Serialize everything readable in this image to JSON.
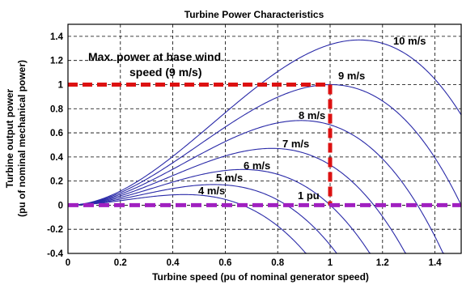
{
  "chart_data": {
    "type": "line",
    "title": "Turbine Power Characteristics",
    "xlabel": "Turbine speed (pu of nominal generator speed)",
    "ylabel_line1": "Turbine output power",
    "ylabel_line2": "(pu of nominal mechanical power)",
    "xlim": [
      0,
      1.5
    ],
    "ylim": [
      -0.4,
      1.5
    ],
    "xticks": [
      "0",
      "0.2",
      "0.4",
      "0.6",
      "0.8",
      "1",
      "1.2",
      "1.4"
    ],
    "yticks": [
      "-0.4",
      "-0.2",
      "0",
      "0.2",
      "0.4",
      "0.6",
      "0.8",
      "1",
      "1.2",
      "1.4"
    ],
    "grid": true,
    "line_color": "#2a2aa8",
    "series": [
      {
        "name": "10 m/s",
        "peak_x": 1.111,
        "peak_y": 1.37
      },
      {
        "name": "9 m/s",
        "peak_x": 1.0,
        "peak_y": 1.0
      },
      {
        "name": "8 m/s",
        "peak_x": 0.889,
        "peak_y": 0.702
      },
      {
        "name": "7 m/s",
        "peak_x": 0.778,
        "peak_y": 0.471
      },
      {
        "name": "6 m/s",
        "peak_x": 0.667,
        "peak_y": 0.296
      },
      {
        "name": "5 m/s",
        "peak_x": 0.556,
        "peak_y": 0.171
      },
      {
        "name": "4 m/s",
        "peak_x": 0.444,
        "peak_y": 0.088
      }
    ],
    "annotations": {
      "max_power_line1": "Max. power at base wind",
      "max_power_line2": "speed (9 m/s)",
      "one_pu": "1 pu"
    },
    "markers": {
      "red_color": "#dd1111",
      "purple_color": "#a020c0",
      "red_horizontal_y": 1.0,
      "red_vertical_x": 1.0,
      "purple_horizontal_y": 0.0
    }
  }
}
